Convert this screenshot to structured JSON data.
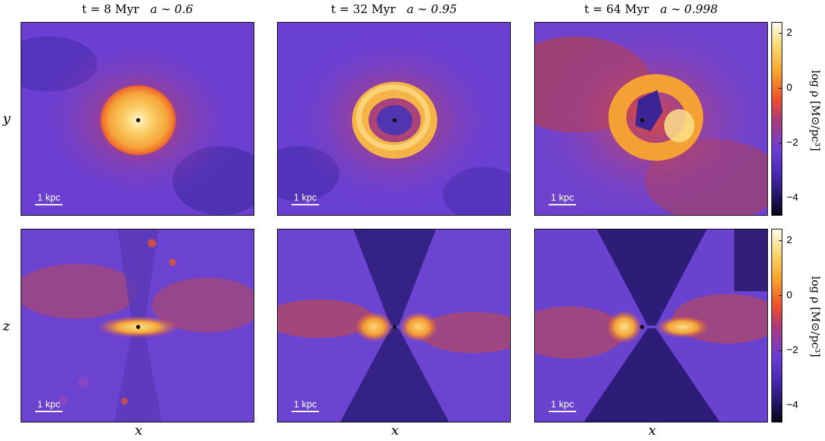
{
  "columns": [
    {
      "time": "t = 8 Myr",
      "scale": "a ∼ 0.6"
    },
    {
      "time": "t = 32 Myr",
      "scale": "a ∼ 0.95"
    },
    {
      "time": "t = 64 Myr",
      "scale": "a ∼ 0.998"
    }
  ],
  "axes": {
    "top_row_ylabel": "y",
    "bottom_row_ylabel": "z",
    "xlabel": "x"
  },
  "scale_bar": "1 kpc",
  "colorbar": {
    "label": "log ρ   [M⊙/pc³]",
    "ticks": [
      "2",
      "0",
      "−2",
      "−4"
    ],
    "range": [
      -4.6,
      2.5
    ]
  },
  "colors": {
    "low": "#050515",
    "mid": "#ef4d2c",
    "high": "#fdfbe9",
    "background": "#5a36c4"
  }
}
